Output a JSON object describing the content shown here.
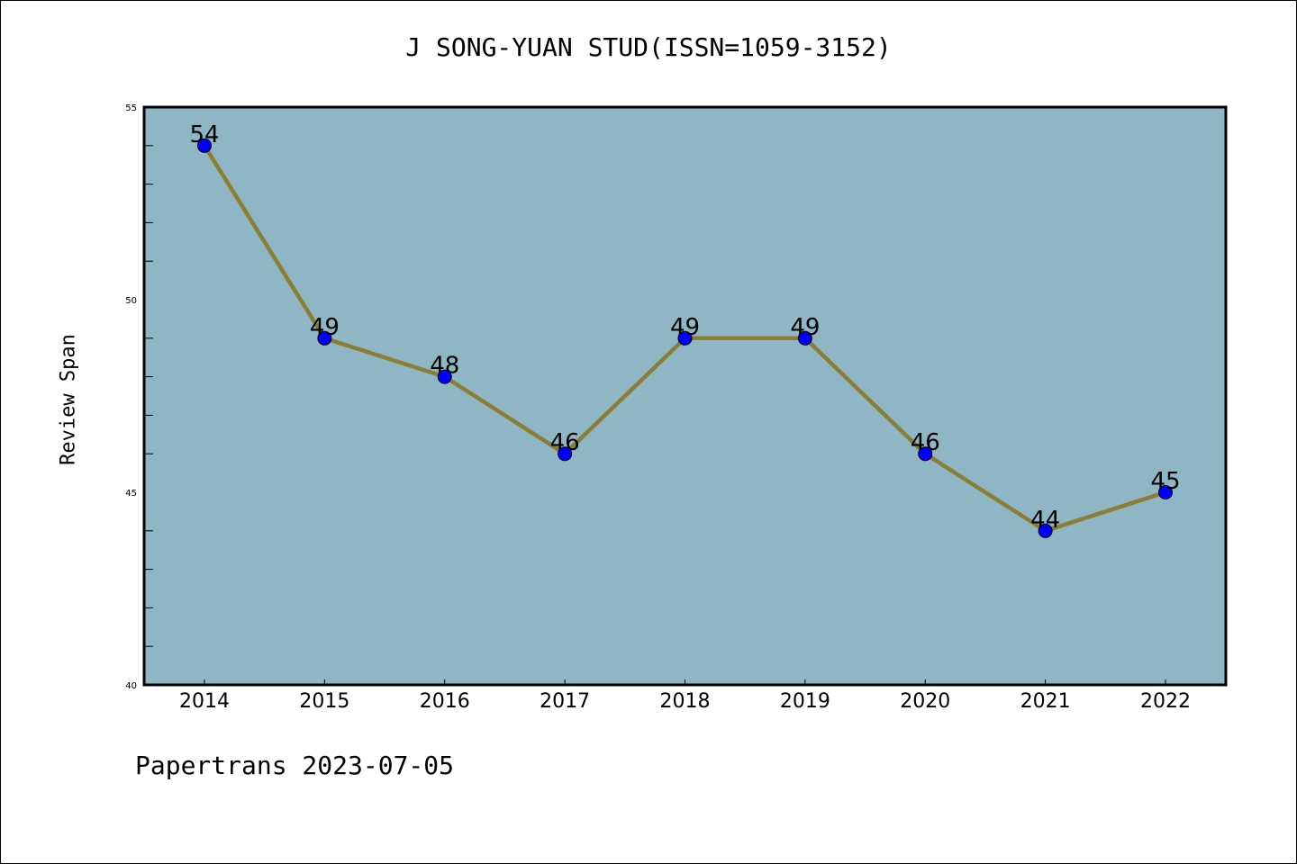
{
  "chart_data": {
    "type": "line",
    "title": "J SONG-YUAN STUD(ISSN=1059-3152)",
    "xlabel": "",
    "ylabel": "Review Span",
    "categories": [
      "2014",
      "2015",
      "2016",
      "2017",
      "2018",
      "2019",
      "2020",
      "2021",
      "2022"
    ],
    "values": [
      54,
      49,
      48,
      46,
      49,
      49,
      46,
      44,
      45
    ],
    "ylim": [
      40,
      55
    ],
    "yticks": [
      40,
      45,
      50,
      55
    ],
    "grid": false,
    "line_color": "#8B7D36",
    "marker_color": "#0000FF",
    "background_color": "#8FB6C5"
  },
  "footer": "Papertrans 2023-07-05"
}
